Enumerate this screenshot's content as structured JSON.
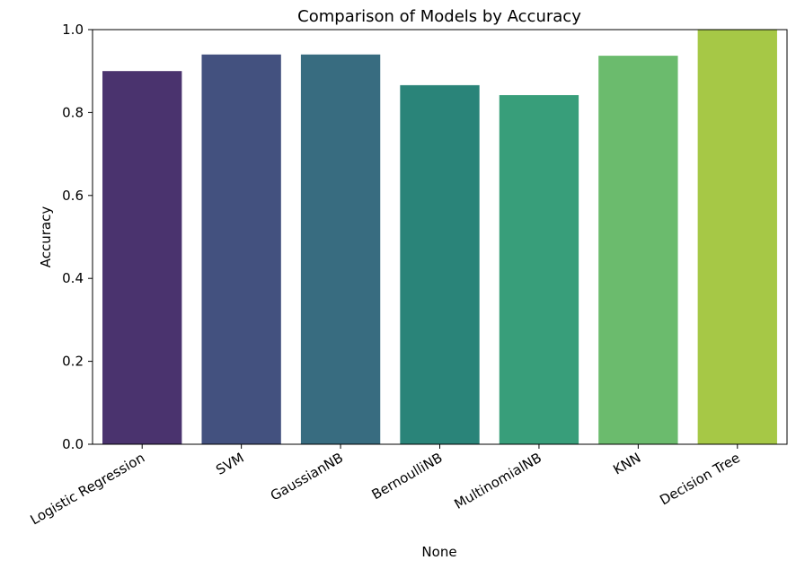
{
  "chart_data": {
    "type": "bar",
    "title": "Comparison of Models by Accuracy",
    "x_label": "None",
    "y_label": "Accuracy",
    "categories": [
      "Logistic Regression",
      "SVM",
      "GaussianNB",
      "BernoulliNB",
      "MultinomialNB",
      "KNN",
      "Decision Tree"
    ],
    "values": [
      0.9,
      0.94,
      0.94,
      0.866,
      0.842,
      0.937,
      1.0
    ],
    "colors": [
      "#4a336e",
      "#43517f",
      "#386c80",
      "#2a8479",
      "#389e7a",
      "#6bbb6d",
      "#a6c846"
    ],
    "ylim": [
      0,
      1
    ],
    "yticks": [
      {
        "value": 0,
        "label": "0.0"
      },
      0.2,
      0.4,
      0.6,
      0.8,
      {
        "value": 1,
        "label": "1.0"
      }
    ],
    "grid": false
  }
}
